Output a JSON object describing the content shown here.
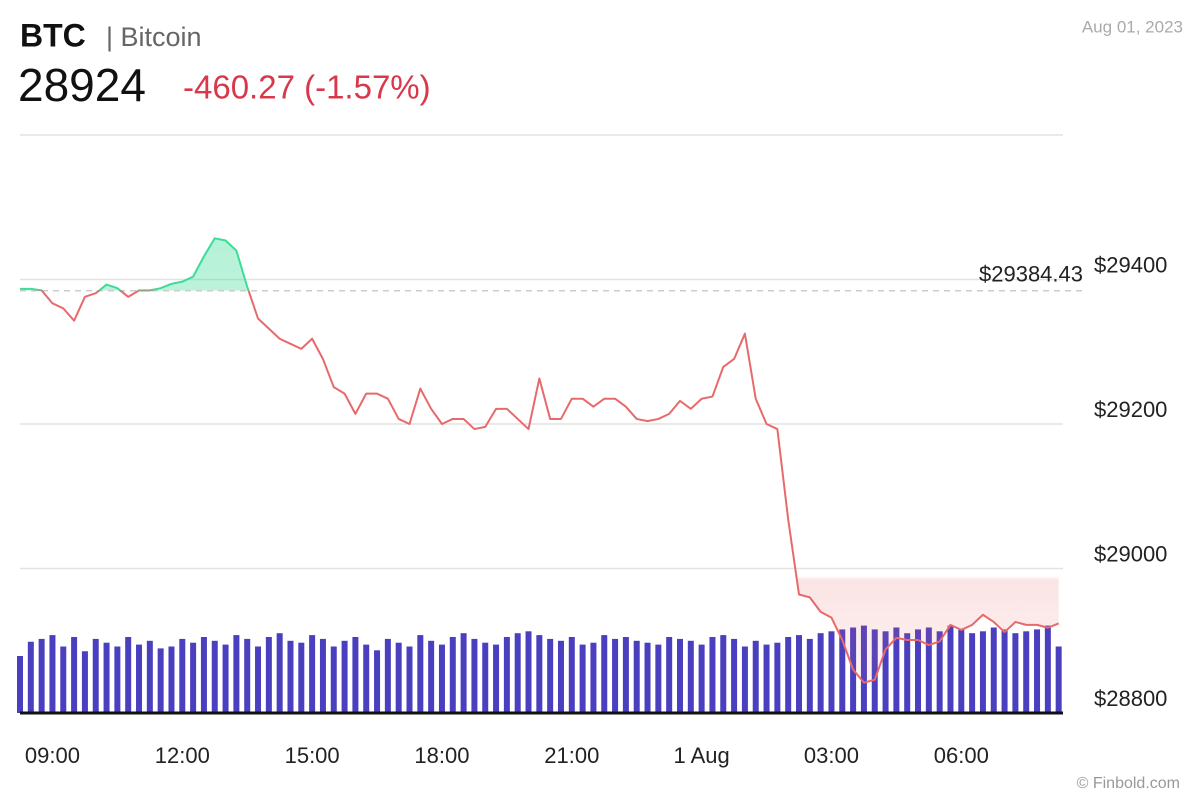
{
  "header": {
    "symbol": "BTC",
    "name": "| Bitcoin",
    "price": "28924",
    "change": "-460.27 (-1.57%)",
    "date": "Aug 01, 2023",
    "credit": "© Finbold.com"
  },
  "chart_data": {
    "type": "line",
    "series": [
      {
        "name": "BTC",
        "color": "#e8696b",
        "up_color": "#3ddc97",
        "values": [
          29387,
          29387,
          29385,
          29367,
          29360,
          29343,
          29376,
          29381,
          29393,
          29388,
          29376,
          29385,
          29385,
          29388,
          29394,
          29397,
          29404,
          29432,
          29457,
          29454,
          29440,
          29390,
          29346,
          29332,
          29318,
          29311,
          29304,
          29318,
          29290,
          29251,
          29242,
          29214,
          29242,
          29242,
          29235,
          29207,
          29200,
          29249,
          29221,
          29200,
          29207,
          29207,
          29193,
          29196,
          29221,
          29221,
          29207,
          29193,
          29263,
          29207,
          29207,
          29235,
          29235,
          29224,
          29235,
          29235,
          29224,
          29207,
          29204,
          29207,
          29214,
          29232,
          29221,
          29235,
          29238,
          29279,
          29290,
          29325,
          29235,
          29200,
          29193,
          29068,
          28964,
          28960,
          28940,
          28932,
          28901,
          28860,
          28842,
          28846,
          28888,
          28904,
          28901,
          28901,
          28894,
          28899,
          28922,
          28915,
          28922,
          28936,
          28926,
          28912,
          28926,
          28922,
          28922,
          28918,
          28924
        ]
      }
    ],
    "x": [
      8.25,
      8.5,
      8.75,
      9,
      9.25,
      9.5,
      9.75,
      10,
      10.25,
      10.5,
      10.75,
      11,
      11.25,
      11.5,
      11.75,
      12,
      12.25,
      12.5,
      12.75,
      13,
      13.25,
      13.5,
      13.75,
      14,
      14.25,
      14.5,
      14.75,
      15,
      15.25,
      15.5,
      15.75,
      16,
      16.25,
      16.5,
      16.75,
      17,
      17.25,
      17.5,
      17.75,
      18,
      18.25,
      18.5,
      18.75,
      19,
      19.25,
      19.5,
      19.75,
      20,
      20.25,
      20.5,
      20.75,
      21,
      21.25,
      21.5,
      21.75,
      22,
      22.25,
      22.5,
      22.75,
      23,
      23.25,
      23.5,
      23.75,
      24,
      24.25,
      24.5,
      24.75,
      25,
      25.25,
      25.5,
      25.75,
      26,
      26.25,
      26.5,
      26.75,
      27,
      27.25,
      27.5,
      27.75,
      28,
      28.25,
      28.5,
      28.75,
      29,
      29.25,
      29.5,
      29.75,
      30,
      30.25,
      30.5,
      30.75,
      31,
      31.25,
      31.5,
      31.75,
      32,
      32.25
    ],
    "volume": {
      "color": "#4a3fbf",
      "vlim": [
        0,
        100
      ],
      "values": [
        60,
        75,
        78,
        82,
        70,
        80,
        65,
        78,
        74,
        70,
        80,
        72,
        76,
        68,
        70,
        78,
        74,
        80,
        76,
        72,
        82,
        78,
        70,
        80,
        84,
        76,
        74,
        82,
        78,
        70,
        76,
        80,
        72,
        66,
        78,
        74,
        70,
        82,
        76,
        72,
        80,
        84,
        78,
        74,
        72,
        80,
        84,
        86,
        82,
        78,
        76,
        80,
        72,
        74,
        82,
        78,
        80,
        76,
        74,
        72,
        80,
        78,
        76,
        72,
        80,
        82,
        78,
        70,
        76,
        72,
        74,
        80,
        82,
        78,
        84,
        86,
        88,
        90,
        92,
        88,
        86,
        90,
        84,
        88,
        90,
        86,
        92,
        88,
        84,
        86,
        90,
        88,
        84,
        86,
        88,
        92,
        70
      ]
    },
    "reference": {
      "value": 29384.43,
      "label": "$29384.43"
    },
    "xlim": [
      8.25,
      32.35
    ],
    "xticks": [
      {
        "value": 9,
        "label": "09:00"
      },
      {
        "value": 12,
        "label": "12:00"
      },
      {
        "value": 15,
        "label": "15:00"
      },
      {
        "value": 18,
        "label": "18:00"
      },
      {
        "value": 21,
        "label": "21:00"
      },
      {
        "value": 24,
        "label": "1 Aug"
      },
      {
        "value": 27,
        "label": "03:00"
      },
      {
        "value": 30,
        "label": "06:00"
      }
    ],
    "ylim": [
      28800,
      29600
    ],
    "yticks": [
      {
        "value": 28800,
        "label": "$28800"
      },
      {
        "value": 29000,
        "label": "$29000"
      },
      {
        "value": 29200,
        "label": "$29200"
      },
      {
        "value": 29400,
        "label": "$29400"
      }
    ],
    "grid": true
  }
}
